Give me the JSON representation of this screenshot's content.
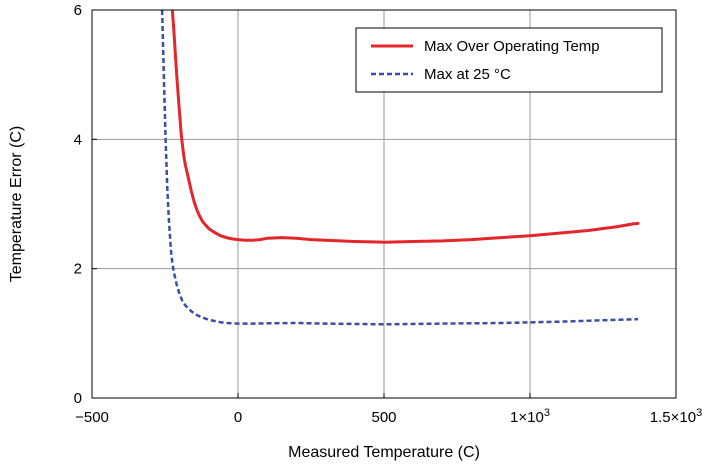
{
  "chart_data": {
    "type": "line",
    "title": "",
    "xlabel": "Measured Temperature (C)",
    "ylabel": "Temperature Error (C)",
    "xlim": [
      -500,
      1500
    ],
    "ylim": [
      0,
      6
    ],
    "grid": true,
    "legend_position": "top-right",
    "x_ticks": [
      {
        "value": -500,
        "label": "−500"
      },
      {
        "value": 0,
        "label": "0"
      },
      {
        "value": 500,
        "label": "500"
      },
      {
        "value": 1000,
        "label": "1×10",
        "sup": "3"
      },
      {
        "value": 1500,
        "label": "1.5×10",
        "sup": "3"
      }
    ],
    "y_ticks": [
      {
        "value": 0,
        "label": "0"
      },
      {
        "value": 2,
        "label": "2"
      },
      {
        "value": 4,
        "label": "4"
      },
      {
        "value": 6,
        "label": "6"
      }
    ],
    "series": [
      {
        "name": "Max Over Operating Temp",
        "color": "#e3262b",
        "style": "solid",
        "x": [
          -225,
          -220,
          -215,
          -210,
          -205,
          -200,
          -195,
          -190,
          -185,
          -180,
          -175,
          -170,
          -160,
          -150,
          -140,
          -130,
          -120,
          -100,
          -80,
          -60,
          -40,
          -20,
          0,
          25,
          50,
          75,
          100,
          150,
          200,
          250,
          300,
          400,
          500,
          600,
          700,
          800,
          900,
          1000,
          1100,
          1200,
          1300,
          1350,
          1370
        ],
        "y": [
          6.0,
          5.7,
          5.35,
          5.0,
          4.7,
          4.4,
          4.1,
          3.9,
          3.72,
          3.6,
          3.5,
          3.4,
          3.2,
          3.03,
          2.9,
          2.8,
          2.72,
          2.62,
          2.56,
          2.51,
          2.48,
          2.46,
          2.45,
          2.44,
          2.44,
          2.45,
          2.47,
          2.48,
          2.47,
          2.45,
          2.44,
          2.42,
          2.41,
          2.42,
          2.43,
          2.45,
          2.48,
          2.51,
          2.55,
          2.59,
          2.65,
          2.69,
          2.7
        ]
      },
      {
        "name": "Max at 25 °C",
        "color": "#3a4fa0",
        "style": "dashed",
        "x": [
          -260,
          -257,
          -254,
          -251,
          -248,
          -245,
          -242,
          -239,
          -236,
          -233,
          -230,
          -225,
          -220,
          -210,
          -200,
          -190,
          -180,
          -160,
          -140,
          -120,
          -100,
          -80,
          -60,
          -40,
          -20,
          0,
          50,
          100,
          200,
          300,
          500,
          700,
          900,
          1100,
          1300,
          1370
        ],
        "y": [
          6.0,
          5.5,
          5.0,
          4.5,
          4.0,
          3.6,
          3.25,
          2.95,
          2.7,
          2.5,
          2.3,
          2.1,
          1.95,
          1.75,
          1.6,
          1.5,
          1.43,
          1.34,
          1.28,
          1.24,
          1.21,
          1.19,
          1.17,
          1.16,
          1.155,
          1.15,
          1.15,
          1.155,
          1.16,
          1.15,
          1.14,
          1.15,
          1.16,
          1.18,
          1.21,
          1.22
        ]
      }
    ]
  }
}
